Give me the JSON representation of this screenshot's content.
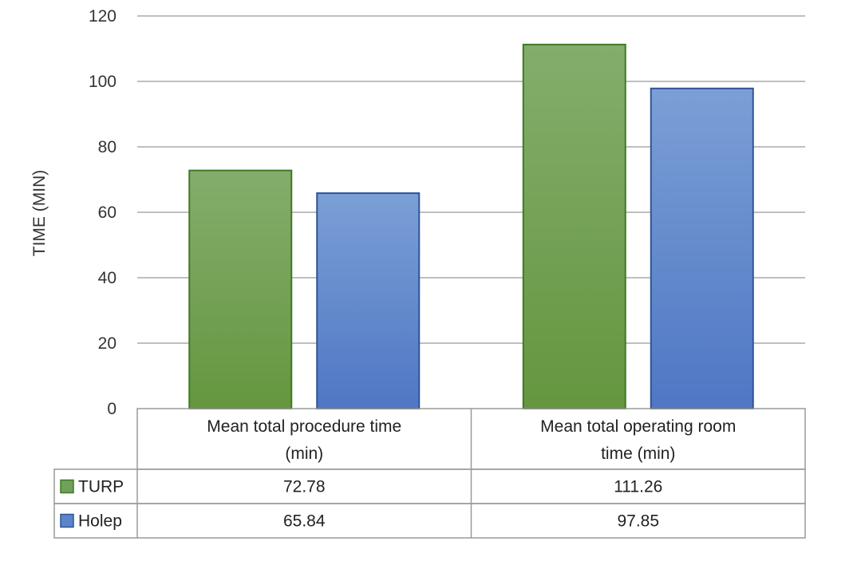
{
  "chart_data": {
    "type": "bar",
    "ylabel": "TIME (MIN)",
    "ylim": [
      0,
      120
    ],
    "yticks": [
      0,
      20,
      40,
      60,
      80,
      100,
      120
    ],
    "grid": true,
    "legend": "data-table",
    "categories": [
      [
        "Mean total procedure time",
        "(min)"
      ],
      [
        "Mean total operating room",
        "time (min)"
      ]
    ],
    "series": [
      {
        "name": "TURP",
        "values": [
          72.78,
          111.26
        ],
        "labels": [
          "72.78",
          "111.26"
        ],
        "color": "#70a05a",
        "border": "#3e7a24"
      },
      {
        "name": "Holep",
        "values": [
          65.84,
          97.85
        ],
        "labels": [
          "65.84",
          "97.85"
        ],
        "color": "#5b84cc",
        "border": "#2f5496"
      }
    ]
  }
}
